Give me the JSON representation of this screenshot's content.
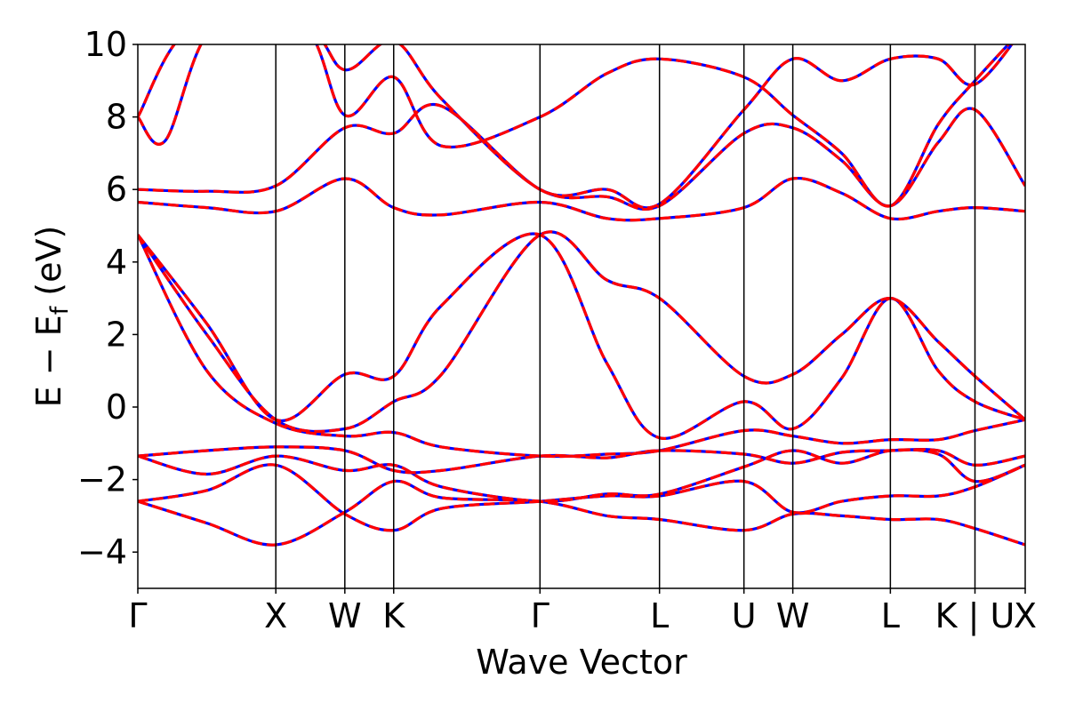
{
  "chart_data": {
    "type": "line",
    "xlabel": "Wave Vector",
    "ylabel": {
      "prefix": "E − E",
      "subscript": "f",
      "suffix": " (eV)"
    },
    "ylim": [
      -5,
      10
    ],
    "y_ticks": [
      -4,
      -2,
      0,
      2,
      4,
      6,
      8,
      10
    ],
    "y_tick_labels": [
      "−4",
      "−2",
      "0",
      "2",
      "4",
      "6",
      "8",
      "10"
    ],
    "x_range": [
      0,
      6.43
    ],
    "high_symmetry_points": [
      {
        "x": 0.0,
        "label": "Γ"
      },
      {
        "x": 1.0,
        "label": "X"
      },
      {
        "x": 1.5,
        "label": "W"
      },
      {
        "x": 1.854,
        "label": "K"
      },
      {
        "x": 2.914,
        "label": "Γ"
      },
      {
        "x": 3.78,
        "label": "L"
      },
      {
        "x": 4.392,
        "label": "U"
      },
      {
        "x": 4.746,
        "label": "W"
      },
      {
        "x": 5.453,
        "label": "L"
      },
      {
        "x": 6.066,
        "label": "K | U"
      },
      {
        "x": 6.43,
        "label": "X"
      }
    ],
    "series_styles": [
      {
        "color": "#0000ff",
        "dashed": false
      },
      {
        "color": "#ff0000",
        "dashed": true
      }
    ],
    "bands": [
      [
        [
          0,
          -2.6
        ],
        [
          0.5,
          -3.2
        ],
        [
          1.0,
          -3.8
        ],
        [
          1.5,
          -2.9
        ],
        [
          1.854,
          -2.05
        ],
        [
          2.2,
          -2.5
        ],
        [
          2.914,
          -2.6
        ],
        [
          3.4,
          -3.0
        ],
        [
          3.78,
          -3.1
        ],
        [
          4.392,
          -3.4
        ],
        [
          4.746,
          -2.95
        ],
        [
          5.1,
          -3.0
        ],
        [
          5.453,
          -3.1
        ],
        [
          5.8,
          -3.1
        ],
        [
          6.066,
          -3.35
        ],
        [
          6.43,
          -3.8
        ]
      ],
      [
        [
          0,
          -2.6
        ],
        [
          0.5,
          -2.3
        ],
        [
          1.0,
          -1.6
        ],
        [
          1.5,
          -2.95
        ],
        [
          1.854,
          -3.4
        ],
        [
          2.2,
          -2.8
        ],
        [
          2.914,
          -2.6
        ],
        [
          3.4,
          -2.45
        ],
        [
          3.78,
          -2.45
        ],
        [
          4.392,
          -2.05
        ],
        [
          4.746,
          -2.9
        ],
        [
          5.1,
          -2.6
        ],
        [
          5.453,
          -2.45
        ],
        [
          5.8,
          -2.45
        ],
        [
          6.066,
          -2.2
        ],
        [
          6.43,
          -1.6
        ]
      ],
      [
        [
          0,
          -1.35
        ],
        [
          0.5,
          -1.85
        ],
        [
          1.0,
          -1.35
        ],
        [
          1.5,
          -1.75
        ],
        [
          1.854,
          -1.6
        ],
        [
          2.2,
          -2.2
        ],
        [
          2.914,
          -2.6
        ],
        [
          3.4,
          -2.4
        ],
        [
          3.78,
          -2.4
        ],
        [
          4.392,
          -1.65
        ],
        [
          4.746,
          -1.2
        ],
        [
          5.1,
          -1.55
        ],
        [
          5.453,
          -1.2
        ],
        [
          5.8,
          -1.3
        ],
        [
          6.066,
          -2.05
        ],
        [
          6.43,
          -1.6
        ]
      ],
      [
        [
          0,
          -1.35
        ],
        [
          0.5,
          -1.2
        ],
        [
          1.0,
          -1.1
        ],
        [
          1.5,
          -1.2
        ],
        [
          1.854,
          -1.75
        ],
        [
          2.2,
          -1.75
        ],
        [
          2.914,
          -1.35
        ],
        [
          3.4,
          -1.4
        ],
        [
          3.78,
          -1.2
        ],
        [
          4.392,
          -1.3
        ],
        [
          4.746,
          -1.55
        ],
        [
          5.1,
          -1.25
        ],
        [
          5.453,
          -1.2
        ],
        [
          5.8,
          -1.2
        ],
        [
          6.066,
          -1.6
        ],
        [
          6.43,
          -1.35
        ]
      ],
      [
        [
          0,
          4.75
        ],
        [
          0.5,
          2.0
        ],
        [
          1.0,
          -0.35
        ],
        [
          1.5,
          -0.6
        ],
        [
          1.854,
          0.15
        ],
        [
          2.2,
          0.9
        ],
        [
          2.914,
          4.75
        ],
        [
          3.4,
          3.5
        ],
        [
          3.78,
          3.0
        ],
        [
          4.392,
          0.85
        ],
        [
          4.746,
          0.9
        ],
        [
          5.1,
          2.0
        ],
        [
          5.453,
          3.0
        ],
        [
          5.8,
          1.8
        ],
        [
          6.066,
          0.85
        ],
        [
          6.43,
          -0.35
        ]
      ],
      [
        [
          0,
          4.75
        ],
        [
          0.5,
          2.3
        ],
        [
          1.0,
          -0.35
        ],
        [
          1.5,
          0.9
        ],
        [
          1.854,
          0.85
        ],
        [
          2.2,
          2.8
        ],
        [
          2.914,
          4.75
        ],
        [
          3.4,
          1.2
        ],
        [
          3.78,
          -0.85
        ],
        [
          4.392,
          0.15
        ],
        [
          4.746,
          -0.6
        ],
        [
          5.1,
          0.8
        ],
        [
          5.453,
          3.0
        ],
        [
          5.8,
          1.0
        ],
        [
          6.066,
          0.15
        ],
        [
          6.43,
          -0.35
        ]
      ],
      [
        [
          0,
          4.75
        ],
        [
          0.5,
          1.0
        ],
        [
          1.0,
          -0.45
        ],
        [
          1.5,
          -0.8
        ],
        [
          1.854,
          -0.7
        ],
        [
          2.2,
          -1.1
        ],
        [
          2.914,
          -1.35
        ],
        [
          3.4,
          -1.3
        ],
        [
          3.78,
          -1.2
        ],
        [
          4.392,
          -0.65
        ],
        [
          4.746,
          -0.8
        ],
        [
          5.1,
          -1.0
        ],
        [
          5.453,
          -0.9
        ],
        [
          5.8,
          -0.9
        ],
        [
          6.066,
          -0.65
        ],
        [
          6.43,
          -0.35
        ]
      ],
      [
        [
          0,
          5.65
        ],
        [
          0.5,
          5.5
        ],
        [
          1.0,
          5.4
        ],
        [
          1.5,
          6.3
        ],
        [
          1.854,
          5.5
        ],
        [
          2.2,
          5.3
        ],
        [
          2.914,
          5.65
        ],
        [
          3.4,
          5.2
        ],
        [
          3.78,
          5.2
        ],
        [
          4.392,
          5.5
        ],
        [
          4.746,
          6.3
        ],
        [
          5.1,
          5.9
        ],
        [
          5.453,
          5.2
        ],
        [
          5.8,
          5.4
        ],
        [
          6.066,
          5.5
        ],
        [
          6.43,
          5.4
        ]
      ],
      [
        [
          0,
          6.0
        ],
        [
          0.5,
          5.95
        ],
        [
          1.0,
          6.1
        ],
        [
          1.5,
          7.7
        ],
        [
          1.854,
          7.55
        ],
        [
          2.2,
          8.3
        ],
        [
          2.914,
          6.0
        ],
        [
          3.4,
          5.8
        ],
        [
          3.78,
          5.55
        ],
        [
          4.392,
          7.55
        ],
        [
          4.746,
          7.7
        ],
        [
          5.1,
          6.8
        ],
        [
          5.453,
          5.55
        ],
        [
          5.8,
          7.3
        ],
        [
          6.066,
          8.2
        ],
        [
          6.43,
          6.1
        ]
      ],
      [
        [
          0,
          8.0
        ],
        [
          0.2,
          7.35
        ],
        [
          0.55,
          10.5
        ],
        [
          1.2,
          10.5
        ],
        [
          1.5,
          8.05
        ],
        [
          1.854,
          9.1
        ],
        [
          2.2,
          7.2
        ],
        [
          2.914,
          8.0
        ],
        [
          3.4,
          9.2
        ],
        [
          3.78,
          9.6
        ],
        [
          4.392,
          9.1
        ],
        [
          4.746,
          8.05
        ],
        [
          5.1,
          7.0
        ],
        [
          5.453,
          5.55
        ],
        [
          5.8,
          7.8
        ],
        [
          6.066,
          9.0
        ],
        [
          6.43,
          10.5
        ]
      ],
      [
        [
          0,
          8.0
        ],
        [
          0.4,
          10.5
        ],
        [
          1.2,
          10.5
        ],
        [
          1.5,
          9.3
        ],
        [
          1.854,
          10.1
        ],
        [
          2.2,
          8.5
        ],
        [
          2.914,
          6.0
        ],
        [
          3.4,
          6.0
        ],
        [
          3.78,
          5.6
        ],
        [
          4.392,
          8.2
        ],
        [
          4.746,
          9.6
        ],
        [
          5.1,
          9.0
        ],
        [
          5.453,
          9.6
        ],
        [
          5.8,
          9.6
        ],
        [
          6.066,
          8.9
        ],
        [
          6.43,
          10.5
        ]
      ]
    ]
  }
}
